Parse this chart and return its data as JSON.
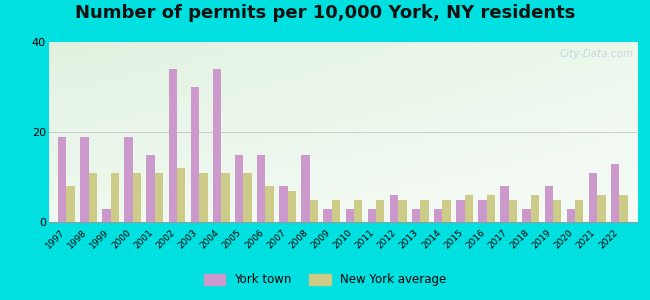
{
  "title": "Number of permits per 10,000 York, NY residents",
  "years": [
    1997,
    1998,
    1999,
    2000,
    2001,
    2002,
    2003,
    2004,
    2005,
    2006,
    2007,
    2008,
    2009,
    2010,
    2011,
    2012,
    2013,
    2014,
    2015,
    2016,
    2017,
    2018,
    2019,
    2020,
    2021,
    2022
  ],
  "york_town": [
    19,
    19,
    3,
    19,
    15,
    34,
    30,
    34,
    15,
    15,
    8,
    15,
    3,
    3,
    3,
    6,
    3,
    3,
    5,
    5,
    8,
    3,
    8,
    3,
    11,
    13
  ],
  "ny_average": [
    8,
    11,
    11,
    11,
    11,
    12,
    11,
    11,
    11,
    8,
    7,
    5,
    5,
    5,
    5,
    5,
    5,
    5,
    6,
    6,
    5,
    6,
    5,
    5,
    6,
    6
  ],
  "york_color": "#cc99cc",
  "ny_color": "#cccc88",
  "background_outer": "#00e0e0",
  "ylim": [
    0,
    40
  ],
  "yticks": [
    0,
    20,
    40
  ],
  "bar_width": 0.38,
  "legend_york": "York town",
  "legend_ny": "New York average",
  "title_fontsize": 13,
  "watermark": "City-Data.com"
}
